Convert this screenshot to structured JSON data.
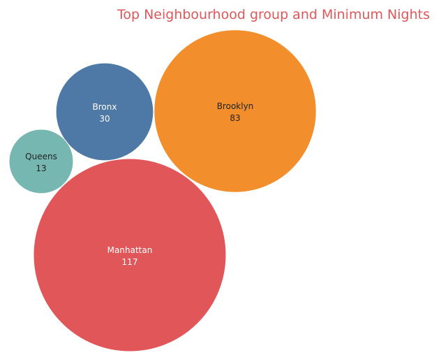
{
  "chart_data": {
    "type": "bubble",
    "title": "Top Neighbourhood group and Minimum Nights",
    "title_color": "#e15759",
    "bubbles": [
      {
        "label": "Brooklyn",
        "value": 83,
        "color": "#f28e2b",
        "text_color": "#222222"
      },
      {
        "label": "Bronx",
        "value": 30,
        "color": "#4e79a7",
        "text_color": "#ffffff"
      },
      {
        "label": "Queens",
        "value": 13,
        "color": "#76b7b2",
        "text_color": "#222222"
      },
      {
        "label": "Manhattan",
        "value": 117,
        "color": "#e15759",
        "text_color": "#ffffff"
      }
    ]
  }
}
